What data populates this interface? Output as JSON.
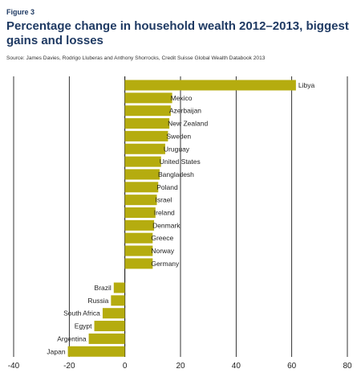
{
  "figure_label": "Figure 3",
  "title": "Percentage change in household wealth 2012–2013, biggest gains and losses",
  "source": "Source: James Davies, Rodrigo Lluberas and Anthony Shorrocks, Credit Suisse Global Wealth Databook 2013",
  "colors": {
    "bar": "#b5ac0f",
    "title": "#1f3a63",
    "grid": "#000000"
  },
  "chart_data": {
    "type": "bar",
    "orientation": "horizontal",
    "title": "Percentage change in household wealth 2012–2013, biggest gains and losses",
    "xlim": [
      -40,
      80
    ],
    "xticks": [
      -40,
      -20,
      0,
      20,
      40,
      60,
      80
    ],
    "grid": true,
    "categories": [
      "Libya",
      "Mexico",
      "Azerbaijan",
      "New Zealand",
      "Sweden",
      "Uruguay",
      "United States",
      "Bangladesh",
      "Poland",
      "Israel",
      "Ireland",
      "Denmark",
      "Greece",
      "Norway",
      "Germany",
      "Brazil",
      "Russia",
      "South Africa",
      "Egypt",
      "Argentina",
      "Japan"
    ],
    "values": [
      61.5,
      17,
      16.5,
      16,
      15.5,
      14.5,
      13,
      12.5,
      12,
      11.5,
      11,
      10.5,
      10,
      10,
      10,
      -4,
      -5,
      -8,
      -11,
      -13,
      -20.5
    ],
    "groups": [
      {
        "name": "gains",
        "count": 15
      },
      {
        "name": "losses",
        "count": 6
      }
    ]
  }
}
